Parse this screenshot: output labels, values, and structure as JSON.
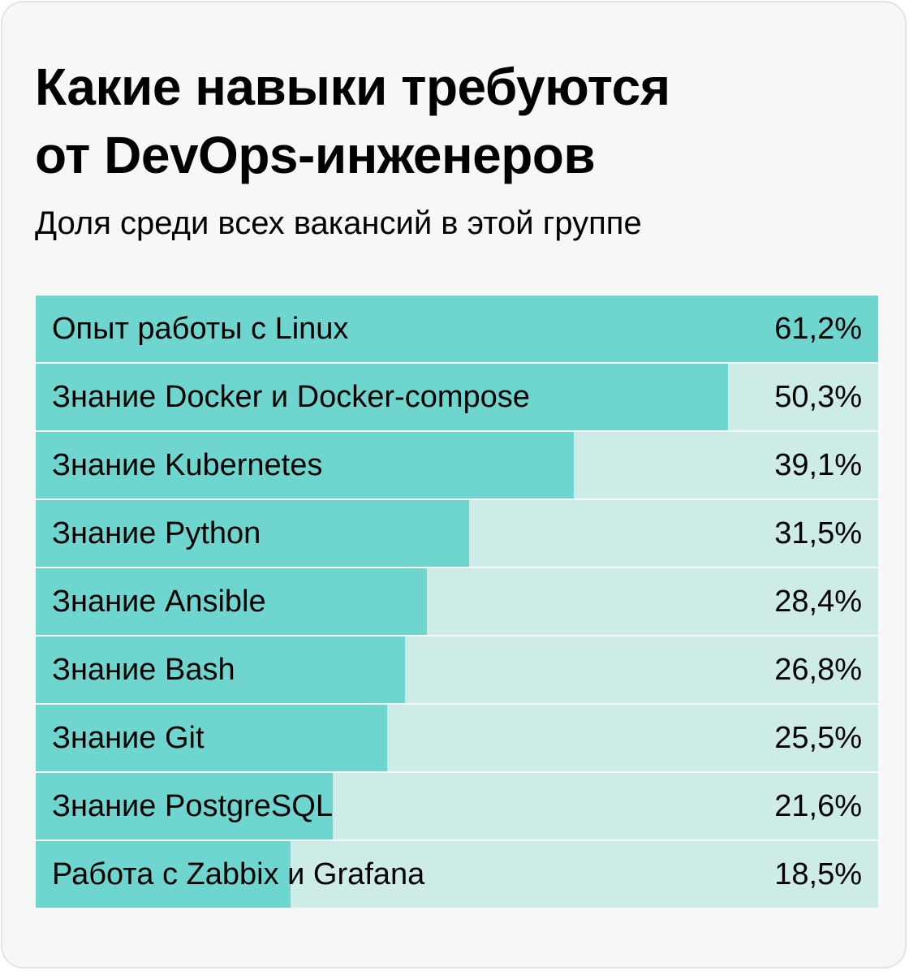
{
  "title": "Какие навыки требуются\nот DevOps-инженеров",
  "subtitle": "Доля среди всех вакансий в этой группе",
  "colors": {
    "bar_fill": "#6fd6cf",
    "bar_track": "#cdece8",
    "card_background": "#f7f7f7",
    "text": "#000000"
  },
  "chart_data": {
    "type": "bar",
    "orientation": "horizontal",
    "title": "Какие навыки требуются от DevOps-инженеров",
    "subtitle": "Доля среди всех вакансий в этой группе",
    "xlabel": "",
    "ylabel": "",
    "xlim": [
      0,
      61.2
    ],
    "grid": false,
    "legend": "none",
    "categories": [
      "Опыт работы с Linux",
      "Знание Docker и Docker-compose",
      "Знание Kubernetes",
      "Знание Python",
      "Знание Ansible",
      "Знание Bash",
      "Знание Git",
      "Знание PostgreSQL",
      "Работа с Zabbix и Grafana"
    ],
    "values": [
      61.2,
      50.3,
      39.1,
      31.5,
      28.4,
      26.8,
      25.5,
      21.6,
      18.5
    ],
    "value_labels": [
      "61,2%",
      "50,3%",
      "39,1%",
      "31,5%",
      "28,4%",
      "26,8%",
      "25,5%",
      "21,6%",
      "18,5%"
    ],
    "unit": "%"
  }
}
